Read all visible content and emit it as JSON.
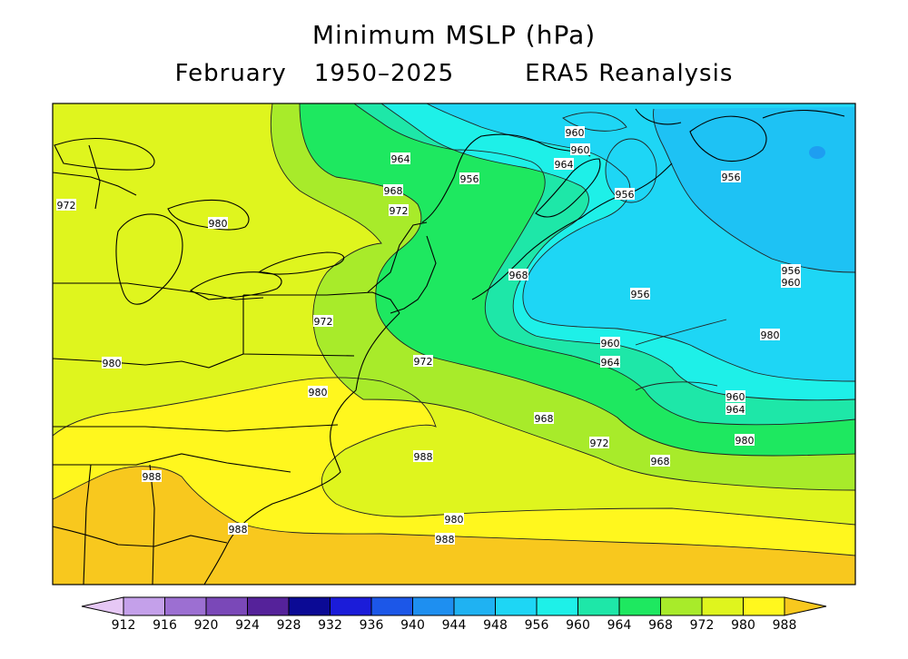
{
  "title": "Minimum MSLP (hPa)",
  "subtitle": {
    "month": "February",
    "period": "1950–2025",
    "source": "ERA5 Reanalysis"
  },
  "colorbar": {
    "labels": [
      "912",
      "916",
      "920",
      "924",
      "928",
      "932",
      "936",
      "940",
      "944",
      "948",
      "956",
      "960",
      "964",
      "968",
      "972",
      "980",
      "988"
    ],
    "colors": [
      "#e6c8f5",
      "#c4a0ea",
      "#9c6fd2",
      "#7a48b8",
      "#55229a",
      "#0b0a95",
      "#1b1cd9",
      "#1c57e8",
      "#1e8ff0",
      "#1fb2f2",
      "#1ed6f5",
      "#1ef0e8",
      "#1ee7a8",
      "#1ee860",
      "#a8eb2a",
      "#dff51e",
      "#fff71e",
      "#f8c81e"
    ]
  },
  "contour_labels": [
    {
      "text": "960"
    },
    {
      "text": "960"
    },
    {
      "text": "964"
    },
    {
      "text": "964"
    },
    {
      "text": "956"
    },
    {
      "text": "956"
    },
    {
      "text": "956"
    },
    {
      "text": "968"
    },
    {
      "text": "972"
    },
    {
      "text": "972"
    },
    {
      "text": "980"
    },
    {
      "text": "968"
    },
    {
      "text": "956"
    },
    {
      "text": "960"
    },
    {
      "text": "956"
    },
    {
      "text": "972"
    },
    {
      "text": "980"
    },
    {
      "text": "980"
    },
    {
      "text": "960"
    },
    {
      "text": "964"
    },
    {
      "text": "972"
    },
    {
      "text": "960"
    },
    {
      "text": "964"
    },
    {
      "text": "968"
    },
    {
      "text": "972"
    },
    {
      "text": "968"
    },
    {
      "text": "980"
    },
    {
      "text": "988"
    },
    {
      "text": "988"
    },
    {
      "text": "980"
    },
    {
      "text": "988"
    },
    {
      "text": "980"
    },
    {
      "text": "988"
    }
  ]
}
